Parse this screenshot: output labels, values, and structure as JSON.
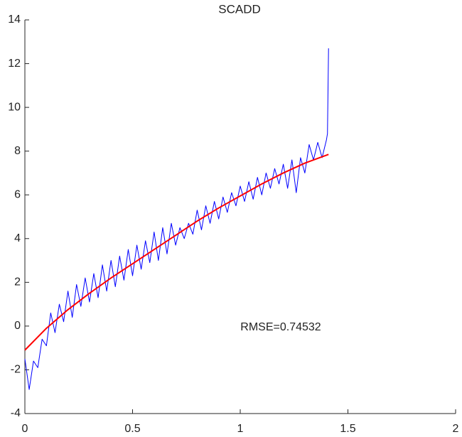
{
  "chart_data": {
    "type": "line",
    "title": "SCADD",
    "annotation": "RMSE=0.74532",
    "xlim": [
      0,
      2
    ],
    "xticks": [
      0,
      0.5,
      1,
      1.5,
      2
    ],
    "ylim": [
      -4,
      14
    ],
    "yticks": [
      -4,
      -2,
      0,
      2,
      4,
      6,
      8,
      10,
      12,
      14
    ],
    "series": [
      {
        "color": "#0000ff",
        "width": 1,
        "x": [
          0,
          0.02,
          0.04,
          0.06,
          0.08,
          0.1,
          0.12,
          0.14,
          0.16,
          0.18,
          0.2,
          0.22,
          0.24,
          0.26,
          0.28,
          0.3,
          0.32,
          0.34,
          0.36,
          0.38,
          0.4,
          0.42,
          0.44,
          0.46,
          0.48,
          0.5,
          0.52,
          0.54,
          0.56,
          0.58,
          0.6,
          0.62,
          0.64,
          0.66,
          0.68,
          0.7,
          0.72,
          0.74,
          0.76,
          0.78,
          0.8,
          0.82,
          0.84,
          0.86,
          0.88,
          0.9,
          0.92,
          0.94,
          0.96,
          0.98,
          1,
          1.02,
          1.04,
          1.06,
          1.08,
          1.1,
          1.12,
          1.14,
          1.16,
          1.18,
          1.2,
          1.22,
          1.24,
          1.26,
          1.28,
          1.3,
          1.32,
          1.34,
          1.36,
          1.38,
          1.4,
          1.405,
          1.41
        ],
        "values": [
          -1.5,
          -2.9,
          -1.6,
          -1.9,
          -0.6,
          -0.9,
          0.6,
          -0.3,
          1.0,
          0.2,
          1.6,
          0.4,
          1.9,
          0.9,
          2.2,
          1.1,
          2.4,
          1.3,
          2.8,
          1.6,
          3.0,
          1.8,
          3.2,
          2.1,
          3.5,
          2.3,
          3.7,
          2.6,
          3.9,
          2.9,
          4.3,
          3.0,
          4.5,
          3.3,
          4.7,
          3.7,
          4.5,
          4.0,
          4.7,
          4.2,
          5.3,
          4.4,
          5.5,
          4.7,
          5.7,
          4.9,
          5.9,
          5.2,
          6.1,
          5.5,
          6.4,
          5.7,
          6.6,
          5.8,
          6.8,
          6.0,
          7.0,
          6.3,
          7.2,
          6.5,
          7.4,
          6.3,
          7.6,
          6.1,
          7.7,
          7.0,
          8.3,
          7.6,
          8.4,
          7.7,
          8.5,
          8.8,
          12.7
        ]
      },
      {
        "color": "#ff0000",
        "width": 2,
        "x": [
          0,
          0.1,
          0.2,
          0.3,
          0.4,
          0.5,
          0.6,
          0.7,
          0.8,
          0.9,
          1,
          1.1,
          1.2,
          1.3,
          1.41
        ],
        "values": [
          -1.1,
          -0.1,
          0.75,
          1.5,
          2.2,
          2.85,
          3.5,
          4.15,
          4.8,
          5.4,
          5.95,
          6.5,
          7.0,
          7.45,
          7.85
        ]
      }
    ]
  }
}
